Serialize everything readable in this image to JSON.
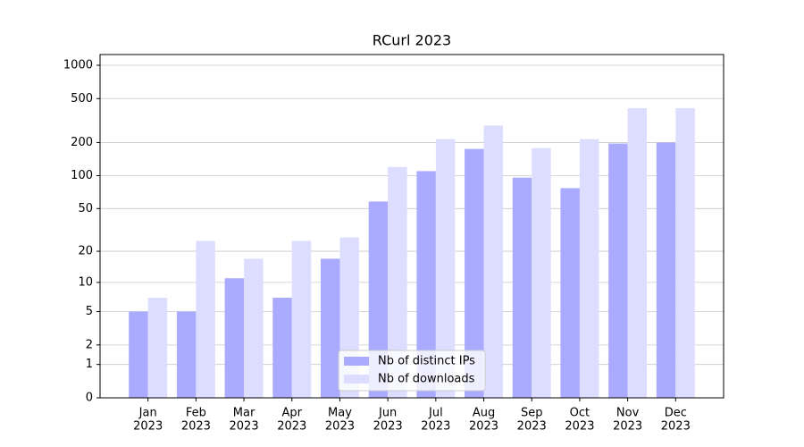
{
  "chart_data": {
    "type": "bar",
    "title": "RCurl 2023",
    "categories": [
      [
        "Jan",
        "2023"
      ],
      [
        "Feb",
        "2023"
      ],
      [
        "Mar",
        "2023"
      ],
      [
        "Apr",
        "2023"
      ],
      [
        "May",
        "2023"
      ],
      [
        "Jun",
        "2023"
      ],
      [
        "Jul",
        "2023"
      ],
      [
        "Aug",
        "2023"
      ],
      [
        "Sep",
        "2023"
      ],
      [
        "Oct",
        "2023"
      ],
      [
        "Nov",
        "2023"
      ],
      [
        "Dec",
        "2023"
      ]
    ],
    "series": [
      {
        "name": "Nb of distinct IPs",
        "color": "#aaaaff",
        "values": [
          5,
          5,
          11,
          7,
          17,
          58,
          110,
          175,
          96,
          77,
          196,
          200
        ]
      },
      {
        "name": "Nb of downloads",
        "color": "#ddddff",
        "values": [
          7,
          25,
          17,
          25,
          27,
          120,
          215,
          285,
          178,
          215,
          410,
          410
        ]
      }
    ],
    "yscale": "log1p",
    "ylim": [
      0,
      1250
    ],
    "yticks": [
      0,
      1,
      2,
      5,
      10,
      20,
      50,
      100,
      200,
      500,
      1000
    ],
    "grid": true,
    "legend": "lower center"
  }
}
